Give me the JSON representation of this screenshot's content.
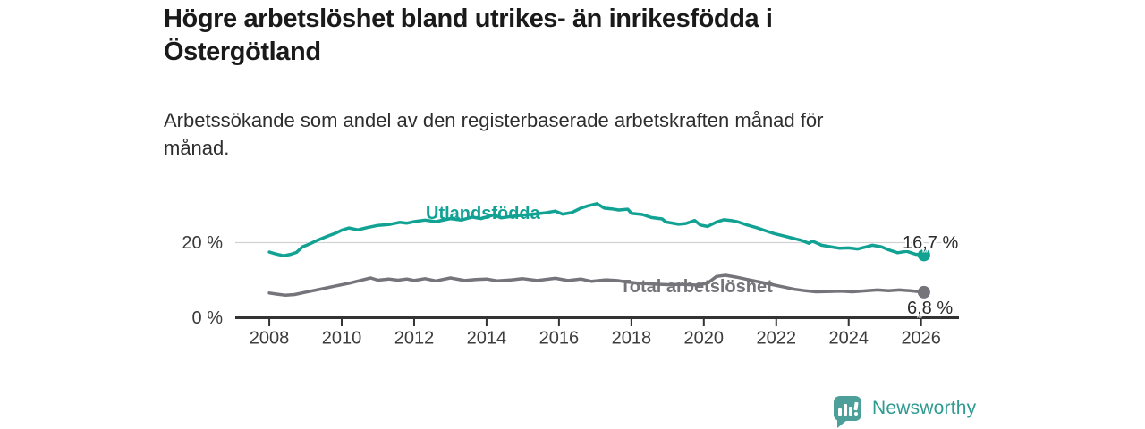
{
  "header": {
    "title_lines": [
      "Högre arbetslöshet bland utrikes- än inrikesfödda i",
      "Östergötland"
    ],
    "subtitle_lines": [
      "Arbetssökande som andel av den registerbaserade arbetskraften månad för",
      "månad."
    ]
  },
  "chart_data": {
    "type": "line",
    "title": "Högre arbetslöshet bland utrikes- än inrikesfödda i Östergötland",
    "subtitle": "Arbetssökande som andel av den registerbaserade arbetskraften månad för månad.",
    "xlabel": "",
    "ylabel": "%",
    "xlim": [
      2007.06,
      2027.05
    ],
    "ylim": [
      0,
      33
    ],
    "x_ticks": [
      2008,
      2010,
      2012,
      2014,
      2016,
      2018,
      2020,
      2022,
      2024,
      2026
    ],
    "y_ticks": [
      0,
      20
    ],
    "y_tick_labels": [
      "0 %",
      "20 %"
    ],
    "grid": "horizontal gridline at 20% only",
    "legend_position": "inline labels on lines",
    "axis_color": "#333333",
    "grid_color": "#d2d2d2",
    "tick_label_color": "#3d3d3d",
    "series": [
      {
        "id": "utlandsfodda",
        "name": "Utlandsfödda",
        "label": "Utlandsfödda",
        "color": "#12a294",
        "end_label": "16,7 %",
        "end_value": 16.7,
        "points": [
          [
            2008.0,
            17.5
          ],
          [
            2008.17,
            17.0
          ],
          [
            2008.4,
            16.5
          ],
          [
            2008.6,
            16.9
          ],
          [
            2008.75,
            17.4
          ],
          [
            2008.92,
            18.9
          ],
          [
            2009.1,
            19.6
          ],
          [
            2009.3,
            20.5
          ],
          [
            2009.6,
            21.7
          ],
          [
            2009.85,
            22.6
          ],
          [
            2010.0,
            23.3
          ],
          [
            2010.2,
            23.9
          ],
          [
            2010.45,
            23.4
          ],
          [
            2010.7,
            24.0
          ],
          [
            2011.0,
            24.6
          ],
          [
            2011.3,
            24.8
          ],
          [
            2011.6,
            25.4
          ],
          [
            2011.8,
            25.2
          ],
          [
            2012.0,
            25.6
          ],
          [
            2012.3,
            26.0
          ],
          [
            2012.6,
            25.6
          ],
          [
            2013.0,
            26.4
          ],
          [
            2013.3,
            26.0
          ],
          [
            2013.6,
            26.8
          ],
          [
            2013.85,
            26.4
          ],
          [
            2014.2,
            27.4
          ],
          [
            2014.4,
            26.6
          ],
          [
            2014.7,
            27.0
          ],
          [
            2015.0,
            27.3
          ],
          [
            2015.3,
            27.6
          ],
          [
            2015.6,
            27.9
          ],
          [
            2015.9,
            28.4
          ],
          [
            2016.1,
            27.6
          ],
          [
            2016.35,
            28.0
          ],
          [
            2016.6,
            29.2
          ],
          [
            2016.8,
            29.8
          ],
          [
            2017.05,
            30.4
          ],
          [
            2017.25,
            29.2
          ],
          [
            2017.45,
            29.0
          ],
          [
            2017.65,
            28.7
          ],
          [
            2017.9,
            28.9
          ],
          [
            2018.0,
            27.8
          ],
          [
            2018.3,
            27.5
          ],
          [
            2018.55,
            26.7
          ],
          [
            2018.85,
            26.3
          ],
          [
            2018.95,
            25.5
          ],
          [
            2019.3,
            24.9
          ],
          [
            2019.5,
            25.1
          ],
          [
            2019.75,
            25.9
          ],
          [
            2019.9,
            24.7
          ],
          [
            2020.1,
            24.3
          ],
          [
            2020.35,
            25.5
          ],
          [
            2020.55,
            26.1
          ],
          [
            2020.75,
            25.9
          ],
          [
            2020.95,
            25.5
          ],
          [
            2021.2,
            24.7
          ],
          [
            2021.45,
            24.0
          ],
          [
            2021.7,
            23.2
          ],
          [
            2021.95,
            22.4
          ],
          [
            2022.2,
            21.8
          ],
          [
            2022.45,
            21.2
          ],
          [
            2022.7,
            20.6
          ],
          [
            2022.9,
            19.8
          ],
          [
            2023.0,
            20.4
          ],
          [
            2023.25,
            19.3
          ],
          [
            2023.5,
            18.9
          ],
          [
            2023.75,
            18.5
          ],
          [
            2024.0,
            18.6
          ],
          [
            2024.25,
            18.3
          ],
          [
            2024.5,
            18.9
          ],
          [
            2024.65,
            19.3
          ],
          [
            2024.9,
            18.9
          ],
          [
            2025.1,
            18.1
          ],
          [
            2025.35,
            17.3
          ],
          [
            2025.6,
            17.7
          ],
          [
            2025.85,
            16.9
          ],
          [
            2026.08,
            16.7
          ]
        ]
      },
      {
        "id": "total",
        "name": "Total arbetslöshet",
        "label": "Total arbetslöshet",
        "color": "#74747a",
        "end_label": "6,8 %",
        "end_value": 6.8,
        "points": [
          [
            2008.0,
            6.6
          ],
          [
            2008.2,
            6.3
          ],
          [
            2008.45,
            6.0
          ],
          [
            2008.7,
            6.2
          ],
          [
            2009.0,
            6.8
          ],
          [
            2009.4,
            7.6
          ],
          [
            2009.8,
            8.4
          ],
          [
            2010.2,
            9.2
          ],
          [
            2010.5,
            9.9
          ],
          [
            2010.8,
            10.6
          ],
          [
            2011.0,
            10.0
          ],
          [
            2011.3,
            10.3
          ],
          [
            2011.55,
            10.0
          ],
          [
            2011.8,
            10.3
          ],
          [
            2012.0,
            9.9
          ],
          [
            2012.3,
            10.4
          ],
          [
            2012.6,
            9.8
          ],
          [
            2013.0,
            10.6
          ],
          [
            2013.4,
            9.9
          ],
          [
            2013.7,
            10.2
          ],
          [
            2014.0,
            10.3
          ],
          [
            2014.3,
            9.8
          ],
          [
            2014.7,
            10.1
          ],
          [
            2015.0,
            10.4
          ],
          [
            2015.4,
            9.9
          ],
          [
            2015.9,
            10.5
          ],
          [
            2016.25,
            9.9
          ],
          [
            2016.6,
            10.3
          ],
          [
            2016.9,
            9.7
          ],
          [
            2017.3,
            10.1
          ],
          [
            2017.6,
            9.9
          ],
          [
            2017.9,
            9.5
          ],
          [
            2018.2,
            9.2
          ],
          [
            2018.6,
            9.0
          ],
          [
            2019.0,
            8.8
          ],
          [
            2019.4,
            8.9
          ],
          [
            2019.8,
            8.7
          ],
          [
            2020.1,
            9.2
          ],
          [
            2020.35,
            11.0
          ],
          [
            2020.6,
            11.3
          ],
          [
            2020.9,
            10.8
          ],
          [
            2021.2,
            10.2
          ],
          [
            2021.6,
            9.4
          ],
          [
            2021.9,
            8.8
          ],
          [
            2022.2,
            8.2
          ],
          [
            2022.5,
            7.6
          ],
          [
            2022.8,
            7.2
          ],
          [
            2023.1,
            6.9
          ],
          [
            2023.5,
            7.0
          ],
          [
            2023.8,
            7.1
          ],
          [
            2024.1,
            6.9
          ],
          [
            2024.5,
            7.2
          ],
          [
            2024.8,
            7.4
          ],
          [
            2025.1,
            7.2
          ],
          [
            2025.4,
            7.4
          ],
          [
            2025.7,
            7.2
          ],
          [
            2026.08,
            6.8
          ]
        ]
      }
    ]
  },
  "footer": {
    "brand": "Newsworthy",
    "logo_icon": "bar-chart-speech-bubble",
    "icon_color": "#4da09a",
    "brand_color": "#2f9a90"
  }
}
